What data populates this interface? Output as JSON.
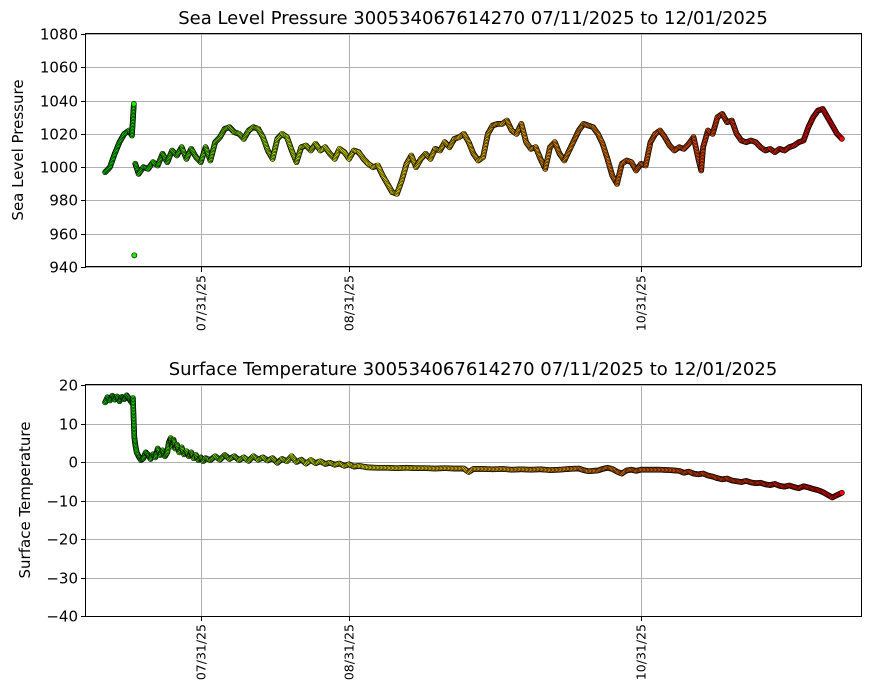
{
  "chart_data": [
    {
      "type": "scatter",
      "title": "Sea Level Pressure 300534067614270  07/11/2025 to 12/01/2025",
      "ylabel": "Sea Level Pressure",
      "xlabel": "",
      "xlim": [
        "2025-07-07",
        "2025-12-16"
      ],
      "ylim": [
        940,
        1080
      ],
      "yticks": [
        940,
        960,
        980,
        1000,
        1020,
        1040,
        1060,
        1080
      ],
      "xticks": [
        {
          "date": "2025-07-31",
          "label": "07/31/25"
        },
        {
          "date": "2025-08-31",
          "label": "08/31/25"
        },
        {
          "date": "2025-10-31",
          "label": "10/31/25"
        }
      ],
      "grid": true,
      "color_scale": [
        "#00e600",
        "#ffff00",
        "#ff8c00",
        "#ff0000"
      ],
      "x_start": "2025-07-11",
      "points": [
        [
          0,
          997
        ],
        [
          1,
          1000
        ],
        [
          2,
          1008
        ],
        [
          3,
          1015
        ],
        [
          4,
          1020
        ],
        [
          5,
          1022
        ],
        [
          5.6,
          1019
        ],
        [
          6,
          1038
        ],
        [
          6.1,
          947
        ],
        [
          6.3,
          1002
        ],
        [
          7,
          996
        ],
        [
          8,
          1000
        ],
        [
          9,
          999
        ],
        [
          10,
          1003
        ],
        [
          11,
          1001
        ],
        [
          12,
          1008
        ],
        [
          13,
          1003
        ],
        [
          14,
          1010
        ],
        [
          15,
          1007
        ],
        [
          16,
          1012
        ],
        [
          17,
          1005
        ],
        [
          18,
          1011
        ],
        [
          19,
          1006
        ],
        [
          20,
          1003
        ],
        [
          21,
          1012
        ],
        [
          22,
          1004
        ],
        [
          23,
          1015
        ],
        [
          24,
          1018
        ],
        [
          25,
          1023
        ],
        [
          26,
          1024
        ],
        [
          27,
          1021
        ],
        [
          28,
          1020
        ],
        [
          29,
          1017
        ],
        [
          30,
          1022
        ],
        [
          31,
          1024
        ],
        [
          32,
          1023
        ],
        [
          33,
          1018
        ],
        [
          34,
          1010
        ],
        [
          35,
          1005
        ],
        [
          36,
          1017
        ],
        [
          37,
          1020
        ],
        [
          38,
          1018
        ],
        [
          39,
          1010
        ],
        [
          40,
          1003
        ],
        [
          41,
          1012
        ],
        [
          42,
          1013
        ],
        [
          43,
          1010
        ],
        [
          44,
          1014
        ],
        [
          45,
          1010
        ],
        [
          46,
          1012
        ],
        [
          47,
          1008
        ],
        [
          48,
          1005
        ],
        [
          49,
          1011
        ],
        [
          50,
          1009
        ],
        [
          51,
          1005
        ],
        [
          52,
          1010
        ],
        [
          53,
          1009
        ],
        [
          54,
          1005
        ],
        [
          55,
          1002
        ],
        [
          56,
          1000
        ],
        [
          57,
          1001
        ],
        [
          58,
          995
        ],
        [
          59,
          990
        ],
        [
          60,
          985
        ],
        [
          61,
          984
        ],
        [
          62,
          992
        ],
        [
          63,
          1002
        ],
        [
          64,
          1007
        ],
        [
          65,
          1000
        ],
        [
          66,
          1005
        ],
        [
          67,
          1008
        ],
        [
          68,
          1005
        ],
        [
          69,
          1011
        ],
        [
          70,
          1010
        ],
        [
          71,
          1015
        ],
        [
          72,
          1012
        ],
        [
          73,
          1017
        ],
        [
          74,
          1018
        ],
        [
          75,
          1020
        ],
        [
          76,
          1015
        ],
        [
          77,
          1008
        ],
        [
          78,
          1004
        ],
        [
          79,
          1006
        ],
        [
          80,
          1020
        ],
        [
          81,
          1025
        ],
        [
          82,
          1026
        ],
        [
          83,
          1026
        ],
        [
          84,
          1028
        ],
        [
          85,
          1022
        ],
        [
          86,
          1020
        ],
        [
          87,
          1026
        ],
        [
          88,
          1015
        ],
        [
          89,
          1011
        ],
        [
          90,
          1012
        ],
        [
          91,
          1005
        ],
        [
          92,
          999
        ],
        [
          93,
          1012
        ],
        [
          94,
          1015
        ],
        [
          95,
          1008
        ],
        [
          96,
          1004
        ],
        [
          97,
          1010
        ],
        [
          98,
          1016
        ],
        [
          99,
          1022
        ],
        [
          100,
          1026
        ],
        [
          101,
          1025
        ],
        [
          102,
          1024
        ],
        [
          103,
          1020
        ],
        [
          104,
          1014
        ],
        [
          105,
          1005
        ],
        [
          106,
          995
        ],
        [
          107,
          990
        ],
        [
          108,
          1002
        ],
        [
          109,
          1004
        ],
        [
          110,
          1003
        ],
        [
          111,
          998
        ],
        [
          112,
          1002
        ],
        [
          113,
          1001
        ],
        [
          114,
          1015
        ],
        [
          115,
          1020
        ],
        [
          116,
          1022
        ],
        [
          117,
          1018
        ],
        [
          118,
          1013
        ],
        [
          119,
          1010
        ],
        [
          120,
          1012
        ],
        [
          121,
          1011
        ],
        [
          122,
          1014
        ],
        [
          123,
          1018
        ],
        [
          124,
          1005
        ],
        [
          124.6,
          998
        ],
        [
          125,
          1012
        ],
        [
          126,
          1022
        ],
        [
          127,
          1020
        ],
        [
          128,
          1030
        ],
        [
          129,
          1032
        ],
        [
          130,
          1027
        ],
        [
          131,
          1028
        ],
        [
          132,
          1020
        ],
        [
          133,
          1016
        ],
        [
          134,
          1015
        ],
        [
          135,
          1016
        ],
        [
          136,
          1015
        ],
        [
          137,
          1012
        ],
        [
          138,
          1010
        ],
        [
          139,
          1011
        ],
        [
          140,
          1009
        ],
        [
          141,
          1011
        ],
        [
          142,
          1010
        ],
        [
          143,
          1012
        ],
        [
          144,
          1013
        ],
        [
          145,
          1015
        ],
        [
          146,
          1016
        ],
        [
          147,
          1024
        ],
        [
          148,
          1030
        ],
        [
          149,
          1034
        ],
        [
          150,
          1035
        ],
        [
          151,
          1030
        ],
        [
          152,
          1025
        ],
        [
          153,
          1020
        ],
        [
          154,
          1017
        ]
      ]
    },
    {
      "type": "scatter",
      "title": "Surface Temperature 300534067614270  07/11/2025 to 12/01/2025",
      "ylabel": "Surface Temperature",
      "xlabel": "",
      "xlim": [
        "2025-07-07",
        "2025-12-16"
      ],
      "ylim": [
        -40,
        20
      ],
      "yticks": [
        -40,
        -30,
        -20,
        -10,
        0,
        10,
        20
      ],
      "xticks": [
        {
          "date": "2025-07-31",
          "label": "07/31/25"
        },
        {
          "date": "2025-08-31",
          "label": "08/31/25"
        },
        {
          "date": "2025-10-31",
          "label": "10/31/25"
        }
      ],
      "grid": true,
      "color_scale": [
        "#00e600",
        "#ffff00",
        "#ff8c00",
        "#ff0000"
      ],
      "x_start": "2025-07-11",
      "points": [
        [
          0,
          15.5
        ],
        [
          0.5,
          16.8
        ],
        [
          1,
          16.0
        ],
        [
          1.5,
          17.2
        ],
        [
          2,
          16.2
        ],
        [
          2.5,
          17.0
        ],
        [
          3,
          15.8
        ],
        [
          3.5,
          16.9
        ],
        [
          4,
          16.3
        ],
        [
          4.5,
          17.3
        ],
        [
          5,
          16.5
        ],
        [
          5.5,
          15.5
        ],
        [
          5.8,
          16.6
        ],
        [
          6,
          9.8
        ],
        [
          6.1,
          6.5
        ],
        [
          6.3,
          4.5
        ],
        [
          6.6,
          2.5
        ],
        [
          7,
          1.5
        ],
        [
          7.5,
          0.5
        ],
        [
          8,
          1.0
        ],
        [
          8.5,
          2.5
        ],
        [
          9,
          1.8
        ],
        [
          9.5,
          0.8
        ],
        [
          10,
          2.0
        ],
        [
          10.5,
          1.2
        ],
        [
          11,
          3.5
        ],
        [
          11.5,
          1.8
        ],
        [
          12,
          3.0
        ],
        [
          12.5,
          1.5
        ],
        [
          13,
          2.5
        ],
        [
          13.3,
          5.0
        ],
        [
          13.7,
          6.2
        ],
        [
          14,
          4.0
        ],
        [
          14.3,
          5.8
        ],
        [
          14.7,
          3.5
        ],
        [
          15,
          4.5
        ],
        [
          15.5,
          2.5
        ],
        [
          16,
          3.8
        ],
        [
          16.5,
          2.0
        ],
        [
          17,
          2.8
        ],
        [
          17.5,
          1.5
        ],
        [
          18,
          2.5
        ],
        [
          18.5,
          1.0
        ],
        [
          19,
          1.8
        ],
        [
          19.5,
          0.5
        ],
        [
          20,
          1.2
        ],
        [
          20.5,
          0.2
        ],
        [
          21,
          1.0
        ],
        [
          22,
          0.5
        ],
        [
          23,
          1.5
        ],
        [
          24,
          0.6
        ],
        [
          25,
          1.8
        ],
        [
          26,
          0.8
        ],
        [
          27,
          1.5
        ],
        [
          28,
          0.5
        ],
        [
          29,
          1.2
        ],
        [
          30,
          0.3
        ],
        [
          31,
          1.5
        ],
        [
          32,
          0.6
        ],
        [
          33,
          1.2
        ],
        [
          34,
          0.4
        ],
        [
          35,
          1.0
        ],
        [
          36,
          -0.2
        ],
        [
          37,
          0.8
        ],
        [
          38,
          0.2
        ],
        [
          39,
          1.5
        ],
        [
          40,
          0.0
        ],
        [
          41,
          0.6
        ],
        [
          42,
          -0.4
        ],
        [
          43,
          0.5
        ],
        [
          44,
          -0.3
        ],
        [
          45,
          0.2
        ],
        [
          46,
          -0.5
        ],
        [
          47,
          -0.2
        ],
        [
          48,
          -0.7
        ],
        [
          49,
          -0.4
        ],
        [
          50,
          -1.0
        ],
        [
          51,
          -0.6
        ],
        [
          52,
          -1.2
        ],
        [
          53,
          -1.0
        ],
        [
          55,
          -1.4
        ],
        [
          57,
          -1.5
        ],
        [
          59,
          -1.5
        ],
        [
          61,
          -1.6
        ],
        [
          63,
          -1.5
        ],
        [
          65,
          -1.6
        ],
        [
          67,
          -1.6
        ],
        [
          69,
          -1.7
        ],
        [
          71,
          -1.6
        ],
        [
          73,
          -1.7
        ],
        [
          75,
          -1.7
        ],
        [
          76,
          -2.6
        ],
        [
          77,
          -1.8
        ],
        [
          79,
          -1.8
        ],
        [
          81,
          -1.9
        ],
        [
          83,
          -1.8
        ],
        [
          85,
          -2.0
        ],
        [
          87,
          -1.9
        ],
        [
          89,
          -2.0
        ],
        [
          91,
          -1.9
        ],
        [
          93,
          -2.1
        ],
        [
          95,
          -2.0
        ],
        [
          97,
          -1.8
        ],
        [
          99,
          -1.7
        ],
        [
          100,
          -2.1
        ],
        [
          101,
          -2.4
        ],
        [
          103,
          -2.2
        ],
        [
          104,
          -1.8
        ],
        [
          105,
          -1.5
        ],
        [
          106,
          -1.8
        ],
        [
          107,
          -2.5
        ],
        [
          108,
          -3.0
        ],
        [
          109,
          -2.2
        ],
        [
          110,
          -2.0
        ],
        [
          111,
          -2.3
        ],
        [
          112,
          -2.0
        ],
        [
          114,
          -2.0
        ],
        [
          116,
          -2.0
        ],
        [
          118,
          -2.1
        ],
        [
          120,
          -2.3
        ],
        [
          121,
          -2.8
        ],
        [
          122,
          -2.5
        ],
        [
          123,
          -3.0
        ],
        [
          124,
          -3.2
        ],
        [
          125,
          -3.0
        ],
        [
          126,
          -3.5
        ],
        [
          127,
          -3.8
        ],
        [
          128,
          -4.2
        ],
        [
          129,
          -4.5
        ],
        [
          130,
          -4.3
        ],
        [
          131,
          -4.8
        ],
        [
          132,
          -5.0
        ],
        [
          133,
          -5.2
        ],
        [
          134,
          -4.9
        ],
        [
          135,
          -5.3
        ],
        [
          136,
          -5.5
        ],
        [
          137,
          -5.4
        ],
        [
          138,
          -5.8
        ],
        [
          139,
          -6.0
        ],
        [
          140,
          -5.7
        ],
        [
          141,
          -6.2
        ],
        [
          142,
          -6.4
        ],
        [
          143,
          -6.1
        ],
        [
          144,
          -6.5
        ],
        [
          145,
          -6.8
        ],
        [
          146,
          -6.3
        ],
        [
          147,
          -6.6
        ],
        [
          148,
          -7.0
        ],
        [
          149,
          -7.3
        ],
        [
          150,
          -7.8
        ],
        [
          151,
          -8.5
        ],
        [
          152,
          -9.2
        ],
        [
          153,
          -8.6
        ],
        [
          154,
          -8.0
        ]
      ]
    }
  ]
}
